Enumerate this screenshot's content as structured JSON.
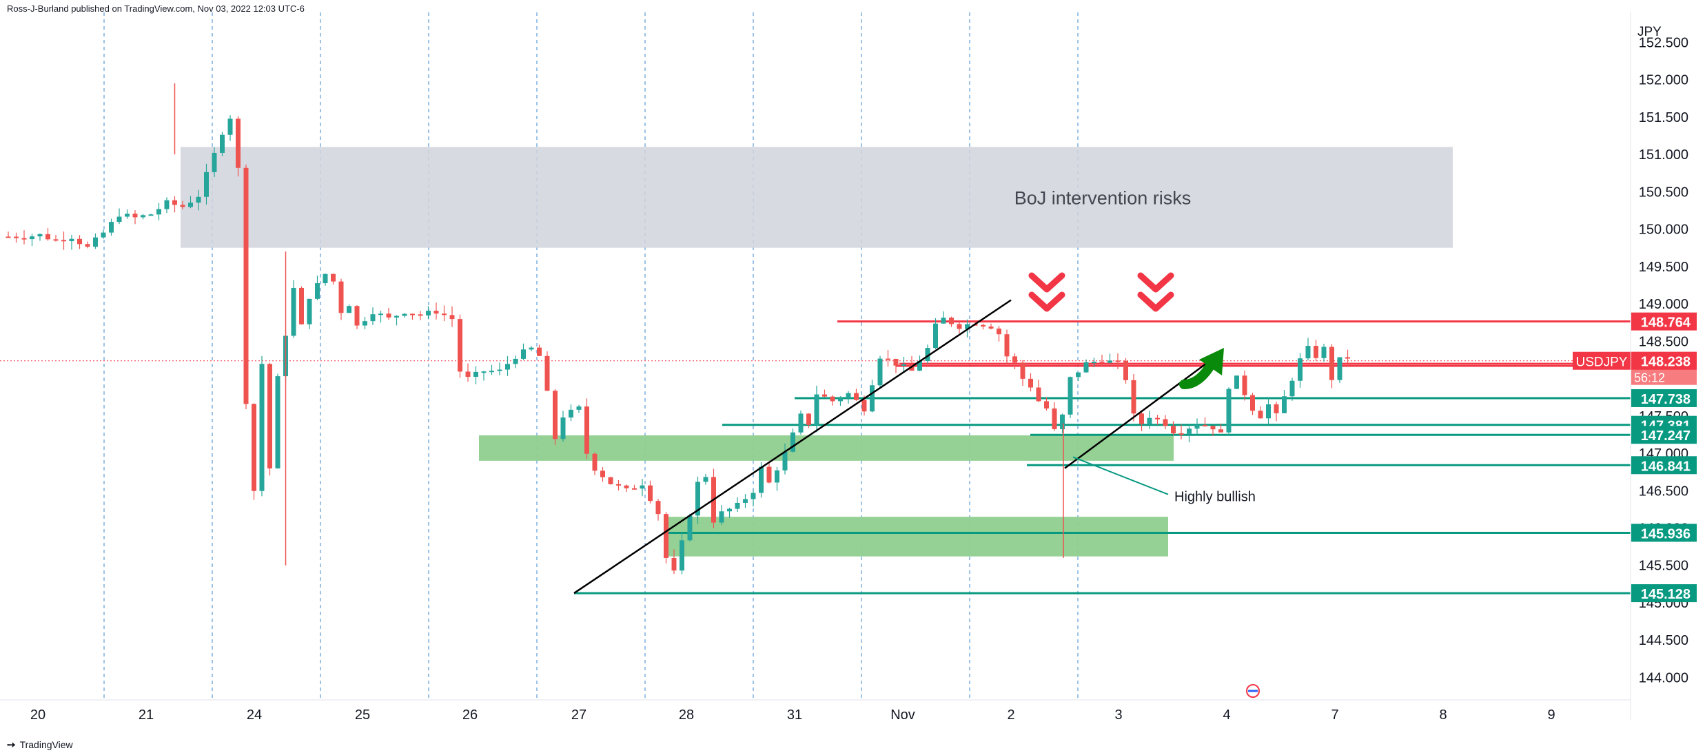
{
  "header": {
    "publisher": "Ross-J-Burland published on TradingView.com, Nov 03, 2022 12:03 UTC-6"
  },
  "footer": {
    "brand": "TradingView"
  },
  "colors": {
    "up": "#26a69a",
    "down": "#ef5350",
    "red_line": "#f23645",
    "green_line": "#089981",
    "zone_grey": "#d1d4dc",
    "zone_green": "#8fcf8f",
    "grid_dash": "#5b9bd5"
  },
  "chart_data": {
    "type": "candlestick",
    "symbol": "USDJPY",
    "currency": "JPY",
    "y_ticks": [
      "152.500",
      "152.000",
      "151.500",
      "151.000",
      "150.500",
      "150.000",
      "149.500",
      "149.000",
      "148.500",
      "148.000",
      "147.500",
      "147.000",
      "146.500",
      "146.000",
      "145.500",
      "145.000",
      "144.500",
      "144.000"
    ],
    "ylim": [
      143.7,
      152.9
    ],
    "x_ticks": [
      "20",
      "21",
      "24",
      "25",
      "26",
      "27",
      "28",
      "31",
      "Nov",
      "2",
      "3",
      "4",
      "7",
      "8",
      "9"
    ],
    "current_price": {
      "symbol": "USDJPY",
      "value": "148.238",
      "countdown": "56:12"
    },
    "levels": [
      {
        "value": "148.764",
        "color": "red"
      },
      {
        "value": "148.171",
        "color": "red"
      },
      {
        "value": "147.738",
        "color": "green"
      },
      {
        "value": "147.381",
        "color": "green"
      },
      {
        "value": "147.247",
        "color": "green"
      },
      {
        "value": "146.841",
        "color": "green"
      },
      {
        "value": "145.936",
        "color": "green"
      },
      {
        "value": "145.128",
        "color": "green"
      }
    ],
    "zones": [
      {
        "label": "BoJ intervention risks",
        "from": 149.75,
        "to": 151.1,
        "color": "grey"
      },
      {
        "from": 146.9,
        "to": 147.24,
        "color": "green"
      },
      {
        "from": 145.62,
        "to": 146.15,
        "color": "green"
      }
    ],
    "annotations": [
      {
        "text": "Highly bullish"
      }
    ],
    "close_path": [
      [
        0,
        149.9
      ],
      [
        2,
        149.9
      ],
      [
        4,
        149.92
      ],
      [
        6,
        149.85
      ],
      [
        8,
        149.9
      ],
      [
        10,
        149.75
      ],
      [
        12,
        149.95
      ],
      [
        14,
        150.2
      ],
      [
        16,
        150.15
      ],
      [
        18,
        150.2
      ],
      [
        20,
        150.35
      ],
      [
        22,
        150.3
      ],
      [
        24,
        150.45
      ],
      [
        26,
        151.0
      ],
      [
        27,
        151.3
      ],
      [
        28,
        151.5
      ],
      [
        29,
        150.8
      ],
      [
        30,
        147.7
      ],
      [
        31,
        146.5
      ],
      [
        32,
        148.2
      ],
      [
        33,
        146.8
      ],
      [
        34,
        148.0
      ],
      [
        35,
        148.6
      ],
      [
        36,
        149.2
      ],
      [
        37,
        148.7
      ],
      [
        38,
        149.1
      ],
      [
        40,
        149.4
      ],
      [
        41,
        149.3
      ],
      [
        42,
        148.9
      ],
      [
        43,
        149.0
      ],
      [
        44,
        148.7
      ],
      [
        46,
        148.9
      ],
      [
        48,
        148.8
      ],
      [
        50,
        148.9
      ],
      [
        52,
        148.85
      ],
      [
        54,
        148.9
      ],
      [
        56,
        148.8
      ],
      [
        57,
        148.1
      ],
      [
        58,
        148.0
      ],
      [
        60,
        148.1
      ],
      [
        62,
        148.1
      ],
      [
        64,
        148.3
      ],
      [
        66,
        148.4
      ],
      [
        67,
        148.3
      ],
      [
        68,
        147.8
      ],
      [
        69,
        147.2
      ],
      [
        70,
        147.5
      ],
      [
        72,
        147.6
      ],
      [
        73,
        147.0
      ],
      [
        74,
        146.8
      ],
      [
        76,
        146.6
      ],
      [
        78,
        146.5
      ],
      [
        80,
        146.6
      ],
      [
        82,
        146.2
      ],
      [
        83,
        145.6
      ],
      [
        84,
        145.4
      ],
      [
        85,
        145.8
      ],
      [
        86,
        146.2
      ],
      [
        87,
        146.6
      ],
      [
        88,
        146.7
      ],
      [
        89,
        146.1
      ],
      [
        90,
        146.2
      ],
      [
        92,
        146.3
      ],
      [
        94,
        146.5
      ],
      [
        95,
        146.8
      ],
      [
        96,
        146.6
      ],
      [
        98,
        147.0
      ],
      [
        100,
        147.5
      ],
      [
        101,
        147.4
      ],
      [
        102,
        147.8
      ],
      [
        104,
        147.7
      ],
      [
        106,
        147.8
      ],
      [
        108,
        147.6
      ],
      [
        110,
        148.3
      ],
      [
        112,
        148.2
      ],
      [
        114,
        148.1
      ],
      [
        116,
        148.4
      ],
      [
        117,
        148.7
      ],
      [
        118,
        148.8
      ],
      [
        120,
        148.7
      ],
      [
        122,
        148.75
      ],
      [
        124,
        148.7
      ],
      [
        125,
        148.6
      ],
      [
        126,
        148.3
      ],
      [
        127,
        148.2
      ],
      [
        128,
        148.0
      ],
      [
        129,
        147.9
      ],
      [
        130,
        147.7
      ],
      [
        131,
        147.6
      ],
      [
        132,
        147.3
      ],
      [
        133,
        147.5
      ],
      [
        134,
        148.0
      ],
      [
        136,
        148.2
      ],
      [
        138,
        148.25
      ],
      [
        140,
        148.2
      ],
      [
        141,
        148.0
      ],
      [
        142,
        147.5
      ],
      [
        143,
        147.4
      ],
      [
        144,
        147.5
      ],
      [
        146,
        147.4
      ],
      [
        147,
        147.3
      ],
      [
        148,
        147.3
      ],
      [
        150,
        147.4
      ],
      [
        152,
        147.35
      ],
      [
        153,
        147.25
      ],
      [
        154,
        147.9
      ],
      [
        155,
        148.0
      ],
      [
        157,
        147.6
      ],
      [
        158,
        147.5
      ],
      [
        159,
        147.65
      ],
      [
        160,
        147.5
      ],
      [
        161,
        147.75
      ],
      [
        162,
        148.0
      ],
      [
        163,
        148.25
      ],
      [
        164,
        148.4
      ],
      [
        165,
        148.3
      ],
      [
        166,
        148.4
      ],
      [
        167,
        148.0
      ],
      [
        168,
        148.25
      ],
      [
        169,
        148.3
      ]
    ]
  }
}
